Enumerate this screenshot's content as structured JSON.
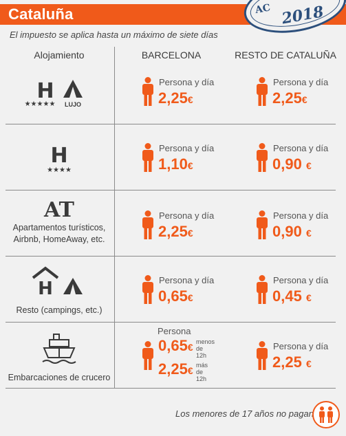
{
  "header": {
    "title": "Cataluña"
  },
  "stamp": {
    "top_text": "AC",
    "year": "2018"
  },
  "subtitle": "El impuesto se aplica hasta un máximo de siete días",
  "columns": {
    "accommodation": "Alojamiento",
    "barcelona": "BARCELONA",
    "rest": "RESTO DE CATALUÑA"
  },
  "per_label": "Persona y día",
  "rows": [
    {
      "icon": "hotel-5-star-and-luxury-tent-icon",
      "stars": "★★★★★",
      "extra": "LUJO",
      "barcelona": {
        "amount": "2,25",
        "currency": "€"
      },
      "rest": {
        "amount": "2,25",
        "currency": "€"
      }
    },
    {
      "icon": "hotel-4-star-icon",
      "stars": "★★★★",
      "barcelona": {
        "amount": "1,10",
        "currency": "€"
      },
      "rest": {
        "amount": "0,90",
        "currency": "€"
      }
    },
    {
      "icon": "at-icon",
      "symbol": "AT",
      "label_lines": [
        "Apartamentos turísticos,",
        "Airbnb, HomeAway, etc."
      ],
      "barcelona": {
        "amount": "2,25",
        "currency": "€"
      },
      "rest": {
        "amount": "0,90",
        "currency": "€"
      }
    },
    {
      "icon": "hostel-and-tent-icon",
      "label_lines": [
        "Resto (campings, etc.)"
      ],
      "barcelona": {
        "amount": "0,65",
        "currency": "€"
      },
      "rest": {
        "amount": "0,45",
        "currency": "€"
      }
    },
    {
      "icon": "cruise-ship-icon",
      "label_lines": [
        "Embarcaciones de crucero"
      ],
      "barcelona": {
        "label": "Persona",
        "under": {
          "amount": "0,65",
          "currency": "€",
          "note_1": "menos",
          "note_2": "de 12h"
        },
        "over": {
          "amount": "2,25",
          "currency": "€",
          "note_1": "más",
          "note_2": "de 12h"
        }
      },
      "rest": {
        "amount": "2,25",
        "currency": "€"
      }
    }
  ],
  "footer": {
    "note": "Los menores de 17 años no pagan",
    "icon": "children-icon"
  },
  "colors": {
    "accent": "#f05a1a",
    "text": "#3a3a3a",
    "stamp": "#2c4f7c",
    "background": "#f1f1f1"
  }
}
